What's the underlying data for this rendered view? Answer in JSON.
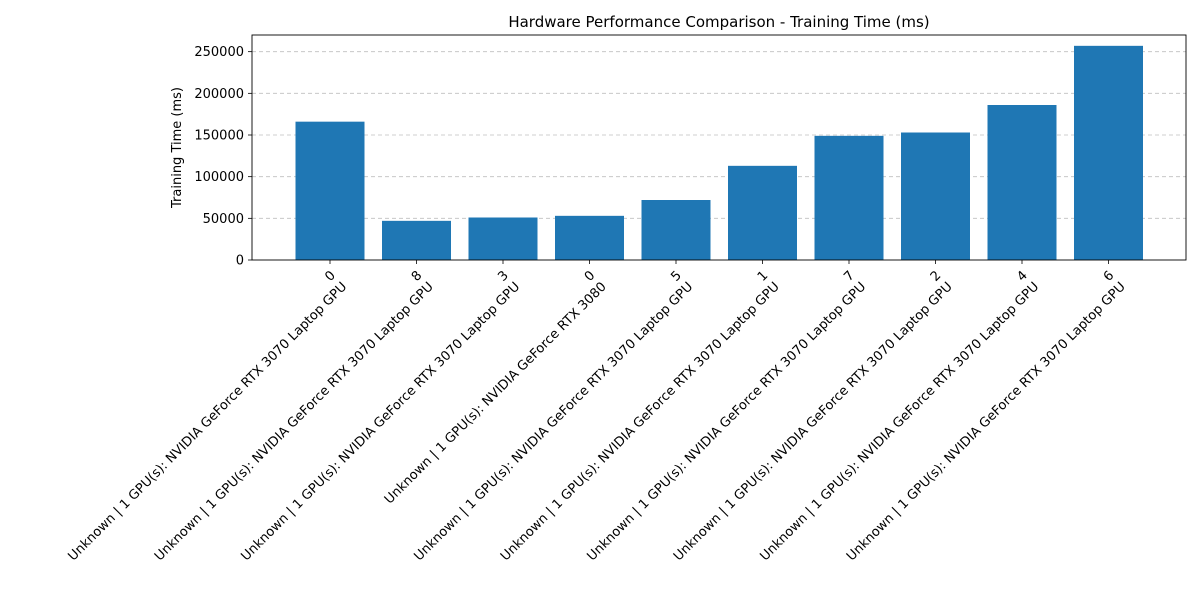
{
  "chart_data": {
    "type": "bar",
    "title": "Hardware Performance Comparison - Training Time (ms)",
    "xlabel": "",
    "ylabel": "Training Time (ms)",
    "ylim": [
      0,
      270000
    ],
    "yticks": [
      0,
      50000,
      100000,
      150000,
      200000,
      250000
    ],
    "grid": "y-dashed",
    "bar_color": "#1f77b4",
    "categories": [
      "Unknown | 1 GPU(s): NVIDIA GeForce RTX 3070 Laptop GPU\n0",
      "Unknown | 1 GPU(s): NVIDIA GeForce RTX 3070 Laptop GPU\n8",
      "Unknown | 1 GPU(s): NVIDIA GeForce RTX 3070 Laptop GPU\n3",
      "Unknown | 1 GPU(s): NVIDIA GeForce RTX 3080\n0",
      "Unknown | 1 GPU(s): NVIDIA GeForce RTX 3070 Laptop GPU\n5",
      "Unknown | 1 GPU(s): NVIDIA GeForce RTX 3070 Laptop GPU\n1",
      "Unknown | 1 GPU(s): NVIDIA GeForce RTX 3070 Laptop GPU\n7",
      "Unknown | 1 GPU(s): NVIDIA GeForce RTX 3070 Laptop GPU\n2",
      "Unknown | 1 GPU(s): NVIDIA GeForce RTX 3070 Laptop GPU\n4",
      "Unknown | 1 GPU(s): NVIDIA GeForce RTX 3070 Laptop GPU\n6"
    ],
    "values": [
      166000,
      47000,
      51000,
      53000,
      72000,
      113000,
      149000,
      153000,
      186000,
      257000
    ]
  }
}
